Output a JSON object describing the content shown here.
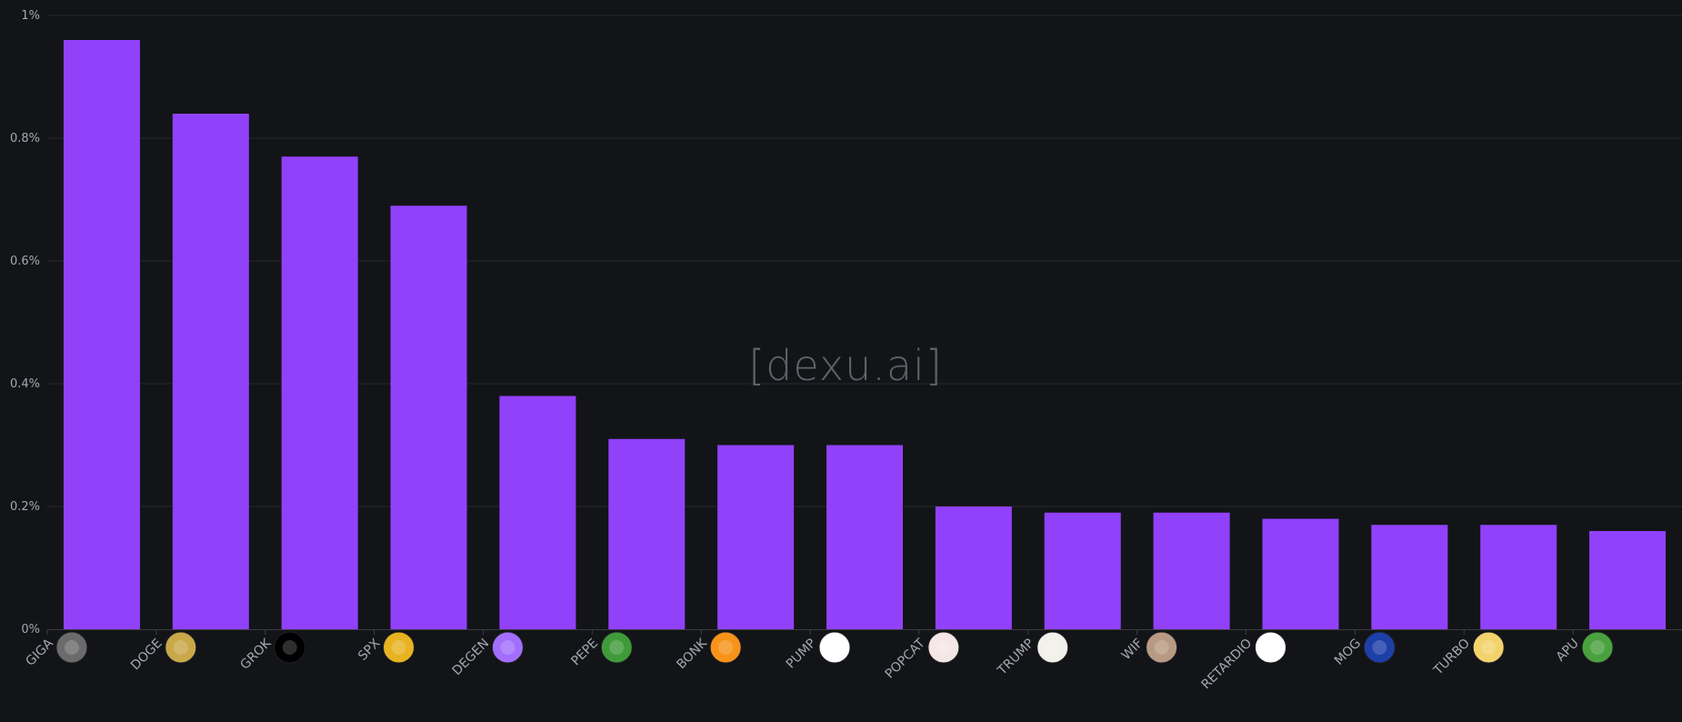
{
  "watermark": "[dexu.ai]",
  "colors": {
    "background": "#131418",
    "bar": "#9241fb",
    "grid": "#25272d",
    "text": "#a6a8b0"
  },
  "chart_data": {
    "type": "bar",
    "title": "",
    "xlabel": "",
    "ylabel": "",
    "ylim": [
      0,
      1
    ],
    "yticks": [
      {
        "value": 0,
        "label": "0%"
      },
      {
        "value": 0.2,
        "label": "0.2%"
      },
      {
        "value": 0.4,
        "label": "0.4%"
      },
      {
        "value": 0.6,
        "label": "0.6%"
      },
      {
        "value": 0.8,
        "label": "0.8%"
      },
      {
        "value": 1,
        "label": "1%"
      }
    ],
    "grid": true,
    "categories": [
      "GIGA",
      "DOGE",
      "GROK",
      "SPX",
      "DEGEN",
      "PEPE",
      "BONK",
      "PUMP",
      "POPCAT",
      "TRUMP",
      "WIF",
      "RETARDIO",
      "MOG",
      "TURBO",
      "APU"
    ],
    "values": [
      0.96,
      0.84,
      0.77,
      0.69,
      0.38,
      0.31,
      0.3,
      0.3,
      0.2,
      0.19,
      0.19,
      0.18,
      0.17,
      0.17,
      0.16
    ],
    "icons": [
      {
        "name": "giga-icon",
        "color": "#6b6b6b"
      },
      {
        "name": "doge-icon",
        "color": "#c9a84a"
      },
      {
        "name": "grok-icon",
        "color": "#000000"
      },
      {
        "name": "spx-icon",
        "color": "#e8b321"
      },
      {
        "name": "degen-icon",
        "color": "#a36efd"
      },
      {
        "name": "pepe-icon",
        "color": "#3f9b3a"
      },
      {
        "name": "bonk-icon",
        "color": "#f7931a"
      },
      {
        "name": "pump-icon",
        "color": "#ffffff"
      },
      {
        "name": "popcat-icon",
        "color": "#f4e6e6"
      },
      {
        "name": "trump-icon",
        "color": "#f2f0ea"
      },
      {
        "name": "wif-icon",
        "color": "#b89a84"
      },
      {
        "name": "retardio-icon",
        "color": "#ffffff"
      },
      {
        "name": "mog-icon",
        "color": "#1d3fa8"
      },
      {
        "name": "turbo-icon",
        "color": "#f2d36b"
      },
      {
        "name": "apu-icon",
        "color": "#4aa23f"
      }
    ]
  }
}
